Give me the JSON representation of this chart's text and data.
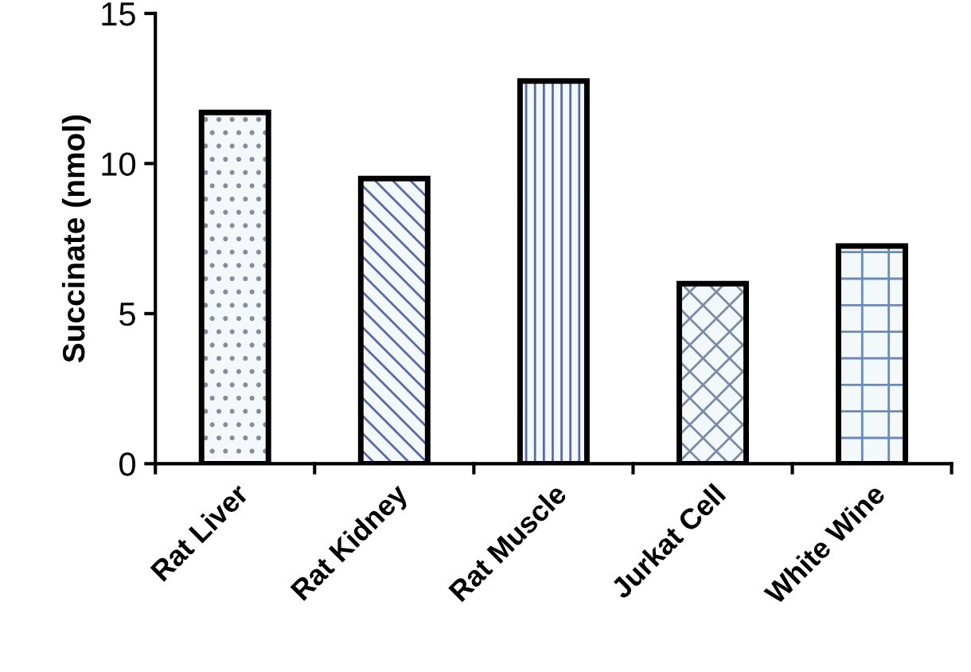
{
  "chart_data": {
    "type": "bar",
    "ylabel": "Succinate (nmol)",
    "categories": [
      "Rat Liver",
      "Rat Kidney",
      "Rat Muscle",
      "Jurkat Cell",
      "White Wine"
    ],
    "values": [
      11.7,
      9.5,
      12.75,
      6.0,
      7.25
    ],
    "color": "#000000",
    "ylim": [
      0,
      15
    ],
    "yticks": [
      0,
      5,
      10,
      15
    ],
    "grid": false
  }
}
